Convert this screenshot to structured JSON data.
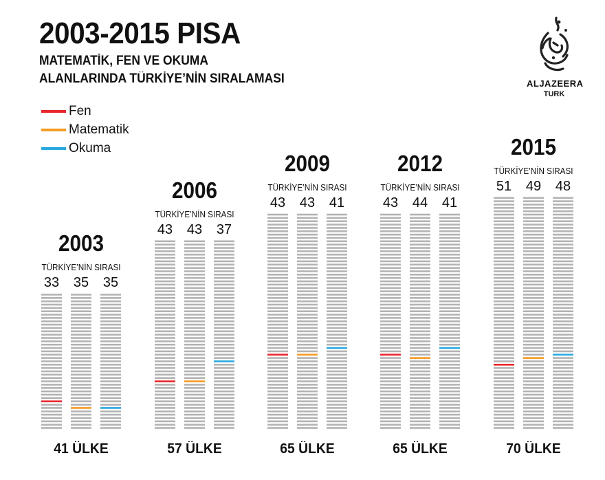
{
  "title": "2003-2015 PISA",
  "subtitle_line1": "MATEMATİK, FEN VE OKUMA",
  "subtitle_line2": "ALANLARINDA TÜRKİYE’NİN SIRALAMASI",
  "logo": {
    "name": "ALJAZEERA",
    "sub": "TURK"
  },
  "legend": [
    {
      "label": "Fen",
      "color": "#e8262b"
    },
    {
      "label": "Matematik",
      "color": "#f59a23"
    },
    {
      "label": "Okuma",
      "color": "#29a9e0"
    }
  ],
  "chart_data": {
    "type": "bar",
    "title": "2003-2015 PISA",
    "series_names": [
      "Fen",
      "Matematik",
      "Okuma"
    ],
    "groups": [
      {
        "year": "2003",
        "rank_label": "TÜRKİYE’NİN SIRASI",
        "ranks": [
          33,
          35,
          35
        ],
        "countries": 41,
        "country_label": "41 ÜLKE"
      },
      {
        "year": "2006",
        "rank_label": "TÜRKİYE’NİN SIRASI",
        "ranks": [
          43,
          43,
          37
        ],
        "countries": 57,
        "country_label": "57 ÜLKE"
      },
      {
        "year": "2009",
        "rank_label": "TÜRKİYE’NİN SIRASI",
        "ranks": [
          43,
          43,
          41
        ],
        "countries": 65,
        "country_label": "65 ÜLKE"
      },
      {
        "year": "2012",
        "rank_label": "TÜRKİYE’NİN SIRASI",
        "ranks": [
          43,
          44,
          41
        ],
        "countries": 65,
        "country_label": "65 ÜLKE"
      },
      {
        "year": "2015",
        "rank_label": "TÜRKİYE’NİN SIRASI",
        "ranks": [
          51,
          49,
          48
        ],
        "countries": 70,
        "country_label": "70 ÜLKE"
      }
    ],
    "stripe_color": "#b3b3b3"
  }
}
